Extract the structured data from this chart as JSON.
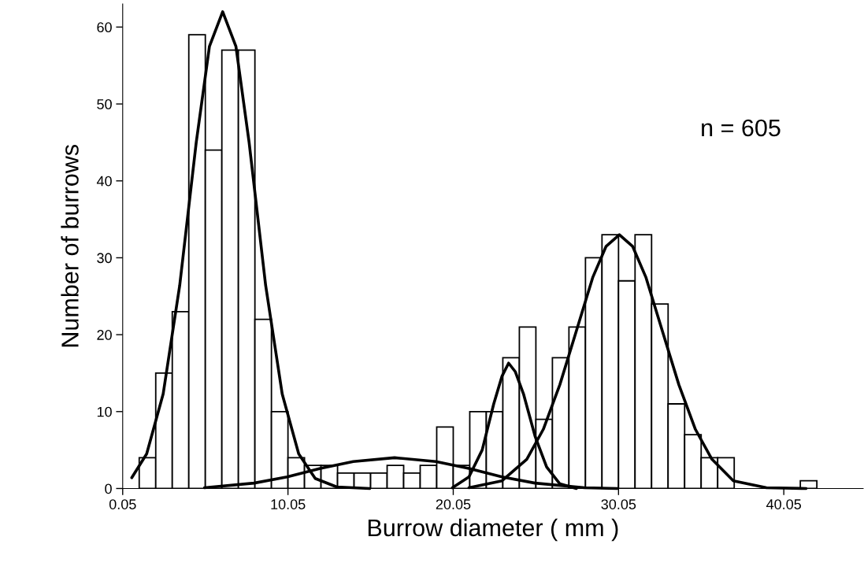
{
  "chart_data": {
    "type": "histogram",
    "xlabel": "Burrow diameter ( mm )",
    "ylabel": "Number of burrows",
    "bins": [
      1.05,
      2.05,
      3.05,
      4.05,
      5.05,
      6.05,
      7.05,
      8.05,
      9.05,
      10.05,
      11.05,
      12.05,
      13.05,
      14.05,
      15.05,
      16.05,
      17.05,
      18.05,
      19.05,
      20.05,
      21.05,
      22.05,
      23.05,
      24.05,
      25.05,
      26.05,
      27.05,
      28.05,
      29.05,
      30.05,
      31.05,
      32.05,
      33.05,
      34.05,
      35.05,
      36.05,
      37.05,
      38.05,
      39.05,
      40.05,
      41.05,
      42.05
    ],
    "values": [
      4,
      15,
      23,
      59,
      44,
      57,
      57,
      22,
      10,
      4,
      3,
      3,
      2,
      2,
      2,
      3,
      2,
      3,
      8,
      3,
      10,
      10,
      17,
      21,
      9,
      17,
      21,
      30,
      33,
      27,
      33,
      24,
      11,
      7,
      4,
      4,
      0,
      0,
      0,
      0,
      1
    ],
    "color": "#ffffff",
    "series": [
      {
        "type": "line",
        "color": "#000000",
        "x": [
          0.6,
          1.5,
          2.5,
          3.5,
          4.5,
          5.3,
          6.1,
          6.9,
          7.7,
          8.7,
          9.7,
          10.7,
          11.7,
          13,
          15
        ],
        "values": [
          1.4,
          4.5,
          12.3,
          26.4,
          45,
          57.5,
          62,
          57.5,
          45,
          26.4,
          12.3,
          4.5,
          1.3,
          0.2,
          0
        ]
      },
      {
        "type": "line",
        "color": "#000000",
        "x": [
          5,
          8,
          10,
          12,
          14,
          16.5,
          19,
          21,
          23,
          25,
          28,
          30
        ],
        "values": [
          0.1,
          0.7,
          1.5,
          2.6,
          3.5,
          4,
          3.5,
          2.6,
          1.5,
          0.7,
          0.1,
          0
        ]
      },
      {
        "type": "line",
        "color": "#000000",
        "x": [
          20,
          21,
          21.8,
          22.5,
          23,
          23.4,
          23.8,
          24.3,
          25,
          25.7,
          26.5,
          27.5
        ],
        "values": [
          0.1,
          1.5,
          5,
          11,
          14.6,
          16.3,
          15.2,
          12.3,
          6.8,
          2.8,
          0.6,
          0
        ]
      },
      {
        "type": "line",
        "color": "#000000",
        "x": [
          21,
          23,
          24.5,
          25.5,
          26.5,
          27.5,
          28.5,
          29.3,
          30.1,
          30.9,
          31.7,
          32.7,
          33.7,
          34.7,
          35.7,
          37,
          39,
          41.4
        ],
        "values": [
          0.1,
          1.0,
          3.8,
          7.7,
          13.5,
          20.5,
          27.5,
          31.5,
          33,
          31.5,
          27.5,
          20.5,
          13.5,
          7.7,
          3.8,
          1.0,
          0.1,
          0
        ]
      }
    ],
    "xlim": [
      0.05,
      44.85
    ],
    "ylim": [
      0,
      63
    ],
    "xticks": [
      {
        "value": 0.05,
        "label": "0.05"
      },
      {
        "value": 10.05,
        "label": "10.05"
      },
      {
        "value": 20.05,
        "label": "20.05"
      },
      {
        "value": 30.05,
        "label": "30.05"
      },
      {
        "value": 40.05,
        "label": "40.05"
      }
    ],
    "yticks": [
      0,
      10,
      20,
      30,
      40,
      50,
      60
    ],
    "annotations": [
      "n = 605"
    ],
    "grid": false,
    "legend": false
  }
}
